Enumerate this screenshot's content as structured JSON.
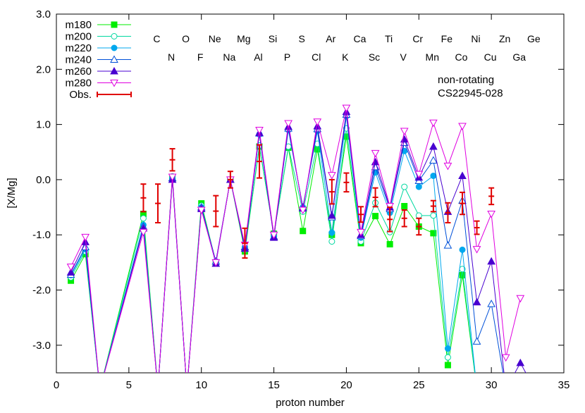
{
  "chart_data": {
    "type": "line",
    "xlabel": "proton number",
    "ylabel": "[X/Mg]",
    "xlim": [
      0,
      35
    ],
    "ylim": [
      -3.5,
      3.0
    ],
    "xticks": [
      0,
      5,
      10,
      15,
      20,
      25,
      30,
      35
    ],
    "yticks": [
      -3.0,
      -2.0,
      -1.0,
      0.0,
      1.0,
      2.0,
      3.0
    ],
    "xtick_labels": [
      "0",
      "5",
      "10",
      "15",
      "20",
      "25",
      "30",
      "35"
    ],
    "ytick_labels": [
      "-3.0",
      "-2.0",
      "-1.0",
      "0.0",
      "1.0",
      "2.0",
      "3.0"
    ],
    "grid": false,
    "legend_placement": "top-left",
    "annotations": [
      "non-rotating",
      "CS22945-028"
    ],
    "element_labels": {
      "top_row": [
        {
          "z": 6,
          "label": "C"
        },
        {
          "z": 8,
          "label": "O"
        },
        {
          "z": 10,
          "label": "Ne"
        },
        {
          "z": 12,
          "label": "Mg"
        },
        {
          "z": 14,
          "label": "Si"
        },
        {
          "z": 16,
          "label": "S"
        },
        {
          "z": 18,
          "label": "Ar"
        },
        {
          "z": 20,
          "label": "Ca"
        },
        {
          "z": 22,
          "label": "Ti"
        },
        {
          "z": 24,
          "label": "Cr"
        },
        {
          "z": 26,
          "label": "Fe"
        },
        {
          "z": 28,
          "label": "Ni"
        },
        {
          "z": 30,
          "label": "Zn"
        },
        {
          "z": 32,
          "label": "Ge"
        }
      ],
      "bottom_row": [
        {
          "z": 7,
          "label": "N"
        },
        {
          "z": 9,
          "label": "F"
        },
        {
          "z": 11,
          "label": "Na"
        },
        {
          "z": 13,
          "label": "Al"
        },
        {
          "z": 15,
          "label": "P"
        },
        {
          "z": 17,
          "label": "Cl"
        },
        {
          "z": 19,
          "label": "K"
        },
        {
          "z": 21,
          "label": "Sc"
        },
        {
          "z": 23,
          "label": "V"
        },
        {
          "z": 25,
          "label": "Mn"
        },
        {
          "z": 27,
          "label": "Co"
        },
        {
          "z": 29,
          "label": "Cu"
        },
        {
          "z": 31,
          "label": "Ga"
        }
      ]
    },
    "series": [
      {
        "name": "m180",
        "color": "#00ee00",
        "marker": "filled-square",
        "x": [
          1,
          2,
          3,
          6,
          7,
          8,
          9,
          10,
          11,
          12,
          13,
          14,
          15,
          16,
          17,
          18,
          19,
          20,
          21,
          22,
          23,
          24,
          25,
          26,
          27,
          28,
          29
        ],
        "y": [
          -1.83,
          -1.35,
          -3.8,
          -0.62,
          -3.8,
          0.05,
          -3.8,
          -0.43,
          -1.5,
          0.0,
          -1.3,
          0.6,
          -0.98,
          0.58,
          -0.93,
          0.55,
          -1.0,
          0.78,
          -1.15,
          -0.66,
          -1.17,
          -0.48,
          -0.85,
          -0.97,
          -3.36,
          -1.73,
          -3.8
        ]
      },
      {
        "name": "m200",
        "color": "#00d8a0",
        "marker": "open-circle",
        "x": [
          1,
          2,
          3,
          6,
          7,
          8,
          9,
          10,
          11,
          12,
          13,
          14,
          15,
          16,
          17,
          18,
          19,
          20,
          21,
          22,
          23,
          24,
          25,
          26,
          27,
          28,
          29
        ],
        "y": [
          -1.77,
          -1.3,
          -3.8,
          -0.7,
          -3.8,
          0.06,
          -3.8,
          -0.47,
          -1.5,
          0.0,
          -1.27,
          0.62,
          -0.98,
          0.6,
          -0.58,
          0.65,
          -1.12,
          0.93,
          -1.12,
          -0.42,
          -0.95,
          -0.13,
          -0.65,
          -0.65,
          -3.22,
          -1.62,
          -3.8
        ]
      },
      {
        "name": "m220",
        "color": "#00a8ee",
        "marker": "filled-circle",
        "x": [
          1,
          2,
          3,
          6,
          7,
          8,
          9,
          10,
          11,
          12,
          13,
          14,
          15,
          16,
          17,
          18,
          19,
          20,
          21,
          22,
          23,
          24,
          25,
          26,
          27,
          28,
          29
        ],
        "y": [
          -1.73,
          -1.26,
          -3.8,
          -0.82,
          -3.8,
          0.02,
          -3.8,
          -0.5,
          -1.48,
          0.0,
          -1.22,
          0.82,
          -1.02,
          0.9,
          -0.5,
          0.88,
          -0.96,
          1.15,
          -1.05,
          0.13,
          -0.6,
          0.52,
          -0.13,
          0.07,
          -3.06,
          -1.27,
          -3.8
        ]
      },
      {
        "name": "m240",
        "color": "#0050d8",
        "marker": "open-triangle-up",
        "x": [
          1,
          2,
          3,
          6,
          7,
          8,
          9,
          10,
          11,
          12,
          13,
          14,
          15,
          16,
          17,
          18,
          19,
          20,
          21,
          22,
          23,
          24,
          25,
          26,
          27,
          28,
          29,
          30,
          31
        ],
        "y": [
          -1.72,
          -1.22,
          -3.8,
          -0.85,
          -3.8,
          0.03,
          -3.8,
          -0.5,
          -1.48,
          0.0,
          -1.22,
          0.84,
          -1.03,
          0.93,
          -0.5,
          0.92,
          -0.68,
          1.18,
          -1.02,
          0.23,
          -0.53,
          0.67,
          -0.02,
          0.35,
          -1.19,
          -0.38,
          -2.93,
          -2.25,
          -3.8
        ]
      },
      {
        "name": "m260",
        "color": "#4800d0",
        "marker": "filled-triangle-up",
        "x": [
          1,
          2,
          3,
          6,
          7,
          8,
          9,
          10,
          11,
          12,
          13,
          14,
          15,
          16,
          17,
          18,
          19,
          20,
          21,
          22,
          23,
          24,
          25,
          26,
          27,
          28,
          29,
          30,
          31,
          32,
          33
        ],
        "y": [
          -1.68,
          -1.13,
          -3.8,
          -0.88,
          -3.8,
          0.0,
          -3.8,
          -0.53,
          -1.52,
          0.0,
          -1.25,
          0.85,
          -1.05,
          0.96,
          -0.52,
          0.97,
          -0.65,
          1.23,
          -1.0,
          0.32,
          -0.5,
          0.73,
          0.04,
          0.6,
          -0.58,
          0.07,
          -2.22,
          -1.48,
          -3.8,
          -3.32,
          -3.8
        ]
      },
      {
        "name": "m280",
        "color": "#e000e0",
        "marker": "open-triangle-down",
        "x": [
          1,
          2,
          3,
          6,
          7,
          8,
          9,
          10,
          11,
          12,
          13,
          14,
          15,
          16,
          17,
          18,
          19,
          20,
          21,
          22,
          23,
          24,
          25,
          26,
          27,
          28,
          29,
          30,
          31,
          32
        ],
        "y": [
          -1.58,
          -1.04,
          -3.8,
          -0.95,
          -3.8,
          0.05,
          -3.8,
          -0.55,
          -1.5,
          0.0,
          -1.18,
          0.9,
          -1.0,
          1.02,
          -0.55,
          1.05,
          0.08,
          1.3,
          -0.95,
          0.48,
          -0.48,
          0.88,
          0.1,
          1.03,
          0.25,
          0.97,
          -1.26,
          -0.62,
          -3.22,
          -2.15
        ]
      }
    ],
    "observations": {
      "name": "Obs.",
      "color": "#e00000",
      "points": [
        {
          "x": 6,
          "y": -0.33,
          "err": 0.25
        },
        {
          "x": 7,
          "y": -0.43,
          "err": 0.35
        },
        {
          "x": 8,
          "y": 0.36,
          "err": 0.2
        },
        {
          "x": 11,
          "y": -0.57,
          "err": 0.28
        },
        {
          "x": 12,
          "y": 0.0,
          "err": 0.15
        },
        {
          "x": 13,
          "y": -1.15,
          "err": 0.27
        },
        {
          "x": 14,
          "y": 0.33,
          "err": 0.3
        },
        {
          "x": 19,
          "y": -0.22,
          "err": 0.22
        },
        {
          "x": 20,
          "y": -0.05,
          "err": 0.17
        },
        {
          "x": 21,
          "y": -0.63,
          "err": 0.14
        },
        {
          "x": 22,
          "y": -0.32,
          "err": 0.17
        },
        {
          "x": 23,
          "y": -0.72,
          "err": 0.22
        },
        {
          "x": 24,
          "y": -0.7,
          "err": 0.15
        },
        {
          "x": 25,
          "y": -0.85,
          "err": 0.15
        },
        {
          "x": 26,
          "y": -0.48,
          "err": 0.1
        },
        {
          "x": 27,
          "y": -0.6,
          "err": 0.18
        },
        {
          "x": 28,
          "y": -0.43,
          "err": 0.2
        },
        {
          "x": 29,
          "y": -0.87,
          "err": 0.12
        },
        {
          "x": 30,
          "y": -0.3,
          "err": 0.15
        }
      ]
    }
  }
}
